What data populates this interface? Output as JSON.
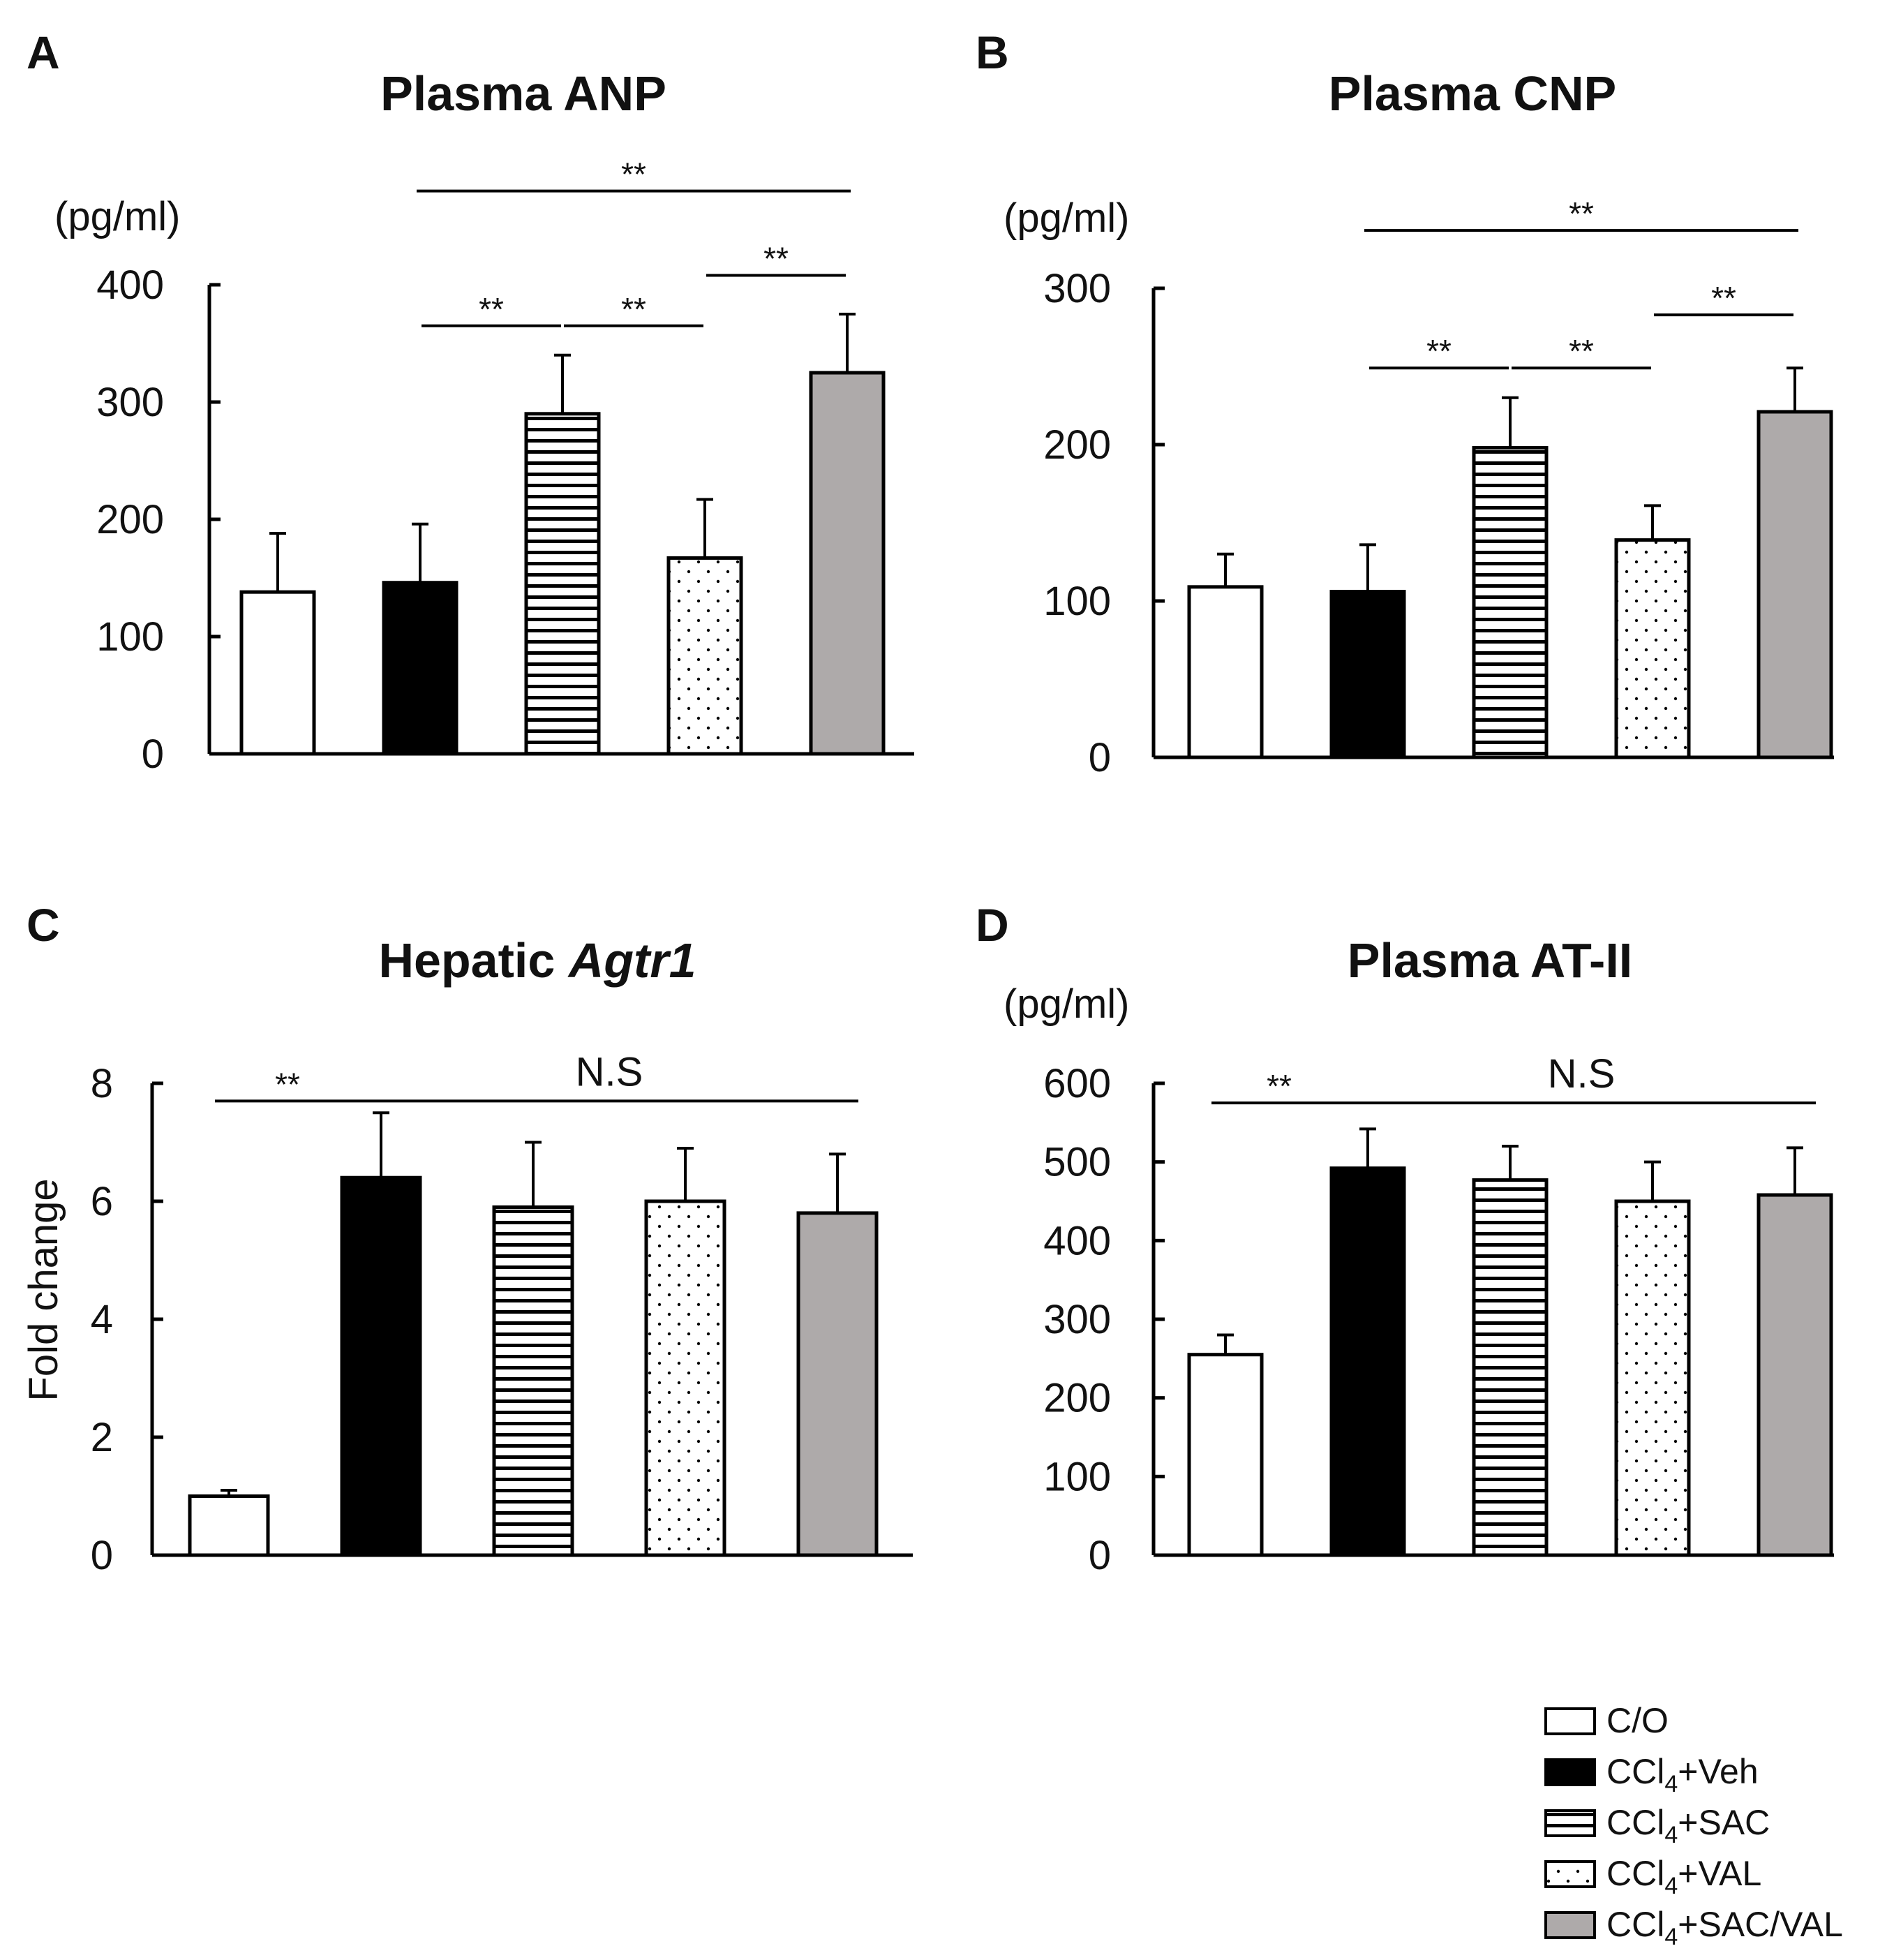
{
  "figure": {
    "legend": [
      {
        "label": "C/O",
        "base": "C/O",
        "sub": "",
        "suffix": "",
        "style": "white"
      },
      {
        "label": "CCl4+Veh",
        "base": "CCl",
        "sub": "4",
        "suffix": "+Veh",
        "style": "black"
      },
      {
        "label": "CCl4+SAC",
        "base": "CCl",
        "sub": "4",
        "suffix": "+SAC",
        "style": "stripes"
      },
      {
        "label": "CCl4+VAL",
        "base": "CCl",
        "sub": "4",
        "suffix": "+VAL",
        "style": "dots"
      },
      {
        "label": "CCl4+SAC/VAL",
        "base": "CCl",
        "sub": "4",
        "suffix": "+SAC/VAL",
        "style": "gray"
      }
    ],
    "colors": {
      "black": "#000000",
      "gray": "#aeaaaa",
      "white": "#ffffff",
      "stroke": "#000000"
    }
  },
  "chart_data": [
    {
      "type": "bar",
      "panel": "A",
      "title": "Plasma ANP",
      "title_plain": "",
      "title_italic": "",
      "unit": "(pg/ml)",
      "ylabel": "",
      "ylim": [
        0,
        400
      ],
      "yticks": [
        0,
        100,
        200,
        300,
        400
      ],
      "categories": [
        "C/O",
        "CCl4+Veh",
        "CCl4+SAC",
        "CCl4+VAL",
        "CCl4+SAC/VAL"
      ],
      "values": [
        138,
        146,
        290,
        167,
        325
      ],
      "errors": [
        50,
        50,
        50,
        50,
        50
      ],
      "significance": [
        {
          "from": 1,
          "to": 4,
          "label": "**",
          "y": 480
        },
        {
          "from": 1,
          "to": 2,
          "label": "**",
          "y": 365
        },
        {
          "from": 2,
          "to": 3,
          "label": "**",
          "y": 365
        },
        {
          "from": 3,
          "to": 4,
          "label": "**",
          "y": 408
        }
      ]
    },
    {
      "type": "bar",
      "panel": "B",
      "title": "Plasma CNP",
      "title_plain": "",
      "title_italic": "",
      "unit": "(pg/ml)",
      "ylabel": "",
      "ylim": [
        0,
        300
      ],
      "yticks": [
        0,
        100,
        200,
        300
      ],
      "categories": [
        "C/O",
        "CCl4+Veh",
        "CCl4+SAC",
        "CCl4+VAL",
        "CCl4+SAC/VAL"
      ],
      "values": [
        109,
        106,
        198,
        139,
        221
      ],
      "errors": [
        21,
        30,
        32,
        22,
        28
      ],
      "significance": [
        {
          "from": 1,
          "to": 4,
          "label": "**",
          "y": 337
        },
        {
          "from": 1,
          "to": 2,
          "label": "**",
          "y": 249
        },
        {
          "from": 2,
          "to": 3,
          "label": "**",
          "y": 249
        },
        {
          "from": 3,
          "to": 4,
          "label": "**",
          "y": 283
        }
      ]
    },
    {
      "type": "bar",
      "panel": "C",
      "title": "Hepatic Agtr1",
      "title_plain": "Hepatic ",
      "title_italic": "Agtr1",
      "unit": "",
      "ylabel": "Fold change",
      "ylim": [
        0,
        8
      ],
      "yticks": [
        0,
        2,
        4,
        6,
        8
      ],
      "categories": [
        "C/O",
        "CCl4+Veh",
        "CCl4+SAC",
        "CCl4+VAL",
        "CCl4+SAC/VAL"
      ],
      "values": [
        1.0,
        6.4,
        5.9,
        6.0,
        5.8
      ],
      "errors": [
        0.1,
        1.1,
        1.1,
        0.9,
        1.0
      ],
      "significance": [
        {
          "from": 0,
          "to": 1,
          "label": "**",
          "y": 7.7
        },
        {
          "from": 1,
          "to": 4,
          "label": "N.S",
          "y": 7.7,
          "ns": true
        }
      ]
    },
    {
      "type": "bar",
      "panel": "D",
      "title": "Plasma AT-II",
      "title_plain": "",
      "title_italic": "",
      "unit": "(pg/ml)",
      "ylabel": "",
      "ylim": [
        0,
        600
      ],
      "yticks": [
        0,
        100,
        200,
        300,
        400,
        500,
        600
      ],
      "categories": [
        "C/O",
        "CCl4+Veh",
        "CCl4+SAC",
        "CCl4+VAL",
        "CCl4+SAC/VAL"
      ],
      "values": [
        255,
        492,
        477,
        450,
        458
      ],
      "errors": [
        25,
        50,
        43,
        50,
        60
      ],
      "significance": [
        {
          "from": 0,
          "to": 1,
          "label": "**",
          "y": 575
        },
        {
          "from": 1,
          "to": 4,
          "label": "N.S",
          "y": 575,
          "ns": true
        }
      ]
    }
  ]
}
